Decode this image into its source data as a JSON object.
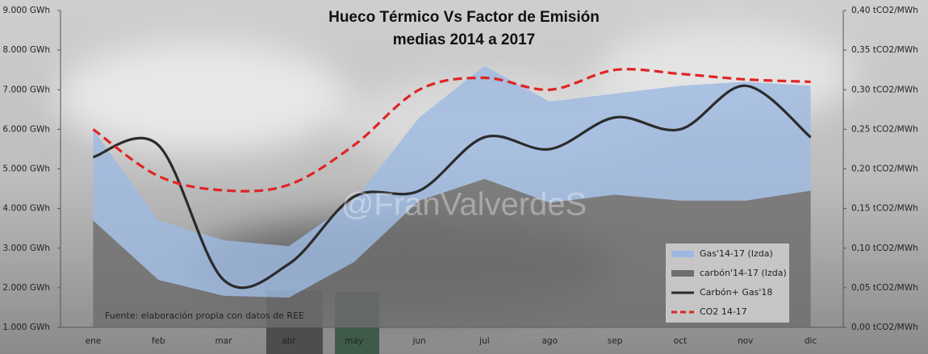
{
  "chart_data": {
    "type": "combo",
    "title": "Hueco Térmico Vs Factor de Emisión",
    "subtitle": "medias 2014 a 2017",
    "annotations": [
      "Fuente: elaboración propia con datos de REE",
      "@FranValverdeS"
    ],
    "categories": [
      "ene",
      "feb",
      "mar",
      "abr",
      "may",
      "jun",
      "jul",
      "ago",
      "sep",
      "oct",
      "nov",
      "dic"
    ],
    "ylim": [
      1000,
      9000
    ],
    "yticks": [
      {
        "value": 1000,
        "label": "1.000 GWh"
      },
      {
        "value": 2000,
        "label": "2.000 GWh"
      },
      {
        "value": 3000,
        "label": "3.000 GWh"
      },
      {
        "value": 4000,
        "label": "4.000 GWh"
      },
      {
        "value": 5000,
        "label": "5.000 GWh"
      },
      {
        "value": 6000,
        "label": "6.000 GWh"
      },
      {
        "value": 7000,
        "label": "7.000 GWh"
      },
      {
        "value": 8000,
        "label": "8.000 GWh"
      },
      {
        "value": 9000,
        "label": "9.000 GWh"
      }
    ],
    "y2lim": [
      0,
      0.4
    ],
    "y2ticks": [
      {
        "value": 0,
        "label": "0,00 tCO2/MWh"
      },
      {
        "value": 0.05,
        "label": "0,05 tCO2/MWh"
      },
      {
        "value": 0.1,
        "label": "0,10 tCO2/MWh"
      },
      {
        "value": 0.15,
        "label": "0,15 tCO2/MWh"
      },
      {
        "value": 0.2,
        "label": "0,20 tCO2/MWh"
      },
      {
        "value": 0.25,
        "label": "0,25 tCO2/MWh"
      },
      {
        "value": 0.3,
        "label": "0,30 tCO2/MWh"
      },
      {
        "value": 0.35,
        "label": "0,35 tCO2/MWh"
      },
      {
        "value": 0.4,
        "label": "0,40 tCO2/MWh"
      }
    ],
    "series": [
      {
        "name": "Gas'14-17 (Izda)",
        "kind": "area",
        "stack": true,
        "color": "#9db9e2",
        "values": [
          2300,
          1500,
          1400,
          1300,
          1550,
          2100,
          2850,
          2550,
          2550,
          2900,
          3000,
          2650
        ]
      },
      {
        "name": "carbón'14-17 (Izda)",
        "kind": "area",
        "stack": true,
        "color": "#6e6e6e",
        "values": [
          3700,
          2200,
          1800,
          1750,
          2650,
          4200,
          4750,
          4150,
          4350,
          4200,
          4200,
          4450
        ]
      },
      {
        "name": "Carbón+ Gas'18",
        "kind": "line",
        "color": "#2b2b2b",
        "values": [
          5300,
          5600,
          2200,
          2600,
          4300,
          4450,
          5800,
          5500,
          6300,
          6000,
          7100,
          5800
        ]
      },
      {
        "name": "CO2 14-17",
        "kind": "line",
        "dash": true,
        "axis": "y2",
        "color": "#e02424",
        "values": [
          0.25,
          0.191,
          0.173,
          0.18,
          0.23,
          0.3,
          0.315,
          0.3,
          0.325,
          0.32,
          0.313,
          0.31
        ]
      }
    ]
  }
}
